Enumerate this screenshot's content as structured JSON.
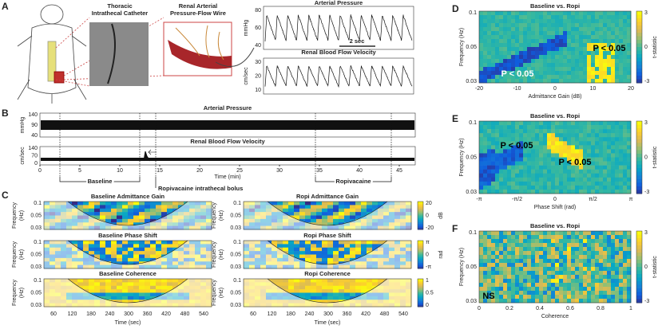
{
  "panels": {
    "A": {
      "letter": "A",
      "catheter_label": [
        "Thoracic",
        "Intrathecal Catheter"
      ],
      "wire_label": [
        "Renal Arterial",
        "Pressure-Flow Wire"
      ],
      "pressure": {
        "title": "Arterial Pressure",
        "ylabel": "mmHg",
        "yticks": [
          "80",
          "60",
          "40"
        ],
        "scale": "2 sec"
      },
      "flow": {
        "title": "Renal Blood Flow Velocity",
        "ylabel": "cm/sec",
        "yticks": [
          "30",
          "20",
          "10"
        ]
      }
    },
    "B": {
      "letter": "B",
      "pressure": {
        "title": "Arterial Pressure",
        "ylabel": "mmHg",
        "yticks": [
          "140",
          "90",
          "40"
        ]
      },
      "flow": {
        "title": "Renal Blood Flow Velocity",
        "ylabel": "cm/sec",
        "yticks": [
          "140",
          "70",
          "0"
        ]
      },
      "xticks": [
        "0",
        "5",
        "10",
        "15",
        "20",
        "25",
        "30",
        "35",
        "40",
        "45"
      ],
      "xlabel": "Time (min)",
      "baseline": "Baseline",
      "bolus": "Ropivacaine intrathecal bolus",
      "ropi": "Ropivacaine"
    },
    "C": {
      "letter": "C",
      "titles": [
        "Baseline Admittance Gain",
        "Ropi Admittance Gain",
        "Baseline Phase Shift",
        "Ropi Phase Shift",
        "Baseline Coherence",
        "Ropi Coherence"
      ],
      "ylabel": [
        "Frequency",
        "(Hz)"
      ],
      "yticks": [
        "0.1",
        "0.05",
        "0.03"
      ],
      "xticks": [
        "60",
        "120",
        "180",
        "240",
        "300",
        "360",
        "420",
        "480",
        "540"
      ],
      "xlabel": "Time (sec)",
      "colorbars": [
        {
          "ticks": [
            "20",
            "0",
            "-20"
          ],
          "label": "dB"
        },
        {
          "ticks": [
            "π",
            "0",
            "-π"
          ],
          "label": "rad"
        },
        {
          "ticks": [
            "1",
            "0.5",
            "0"
          ]
        }
      ]
    },
    "D": {
      "letter": "D",
      "title": "Baseline vs. Ropi",
      "ylabel": "Frequency (Hz)",
      "yticks": [
        "0.1",
        "0.05",
        "0.03"
      ],
      "xlabel": "Admittance Gain (dB)",
      "xticks": [
        "-20",
        "-10",
        "0",
        "10",
        "20"
      ],
      "annotations": [
        "P < 0.05",
        "P < 0.05"
      ],
      "cbar": {
        "label": "t-statistic",
        "ticks": [
          "3",
          "0",
          "-3"
        ]
      }
    },
    "E": {
      "letter": "E",
      "title": "Baseline vs. Ropi",
      "ylabel": "Frequency (Hz)",
      "yticks": [
        "0.1",
        "0.05",
        "0.03"
      ],
      "xlabel": "Phase Shift (rad)",
      "xticks": [
        "-π",
        "-π/2",
        "0",
        "π/2",
        "π"
      ],
      "annotations": [
        "P < 0.05",
        "P < 0.05"
      ],
      "cbar": {
        "label": "t-statistic",
        "ticks": [
          "3",
          "0",
          "-3"
        ]
      }
    },
    "F": {
      "letter": "F",
      "title": "Baseline vs. Ropi",
      "ylabel": "Frequency (Hz)",
      "yticks": [
        "0.1",
        "0.05",
        "0.03"
      ],
      "xlabel": "Coherence",
      "xticks": [
        "0",
        "0.2",
        "0.4",
        "0.6",
        "0.8",
        "1"
      ],
      "annotations": [
        "NS"
      ],
      "cbar": {
        "label": "t-statistic",
        "ticks": [
          "3",
          "0",
          "-3"
        ]
      }
    }
  }
}
